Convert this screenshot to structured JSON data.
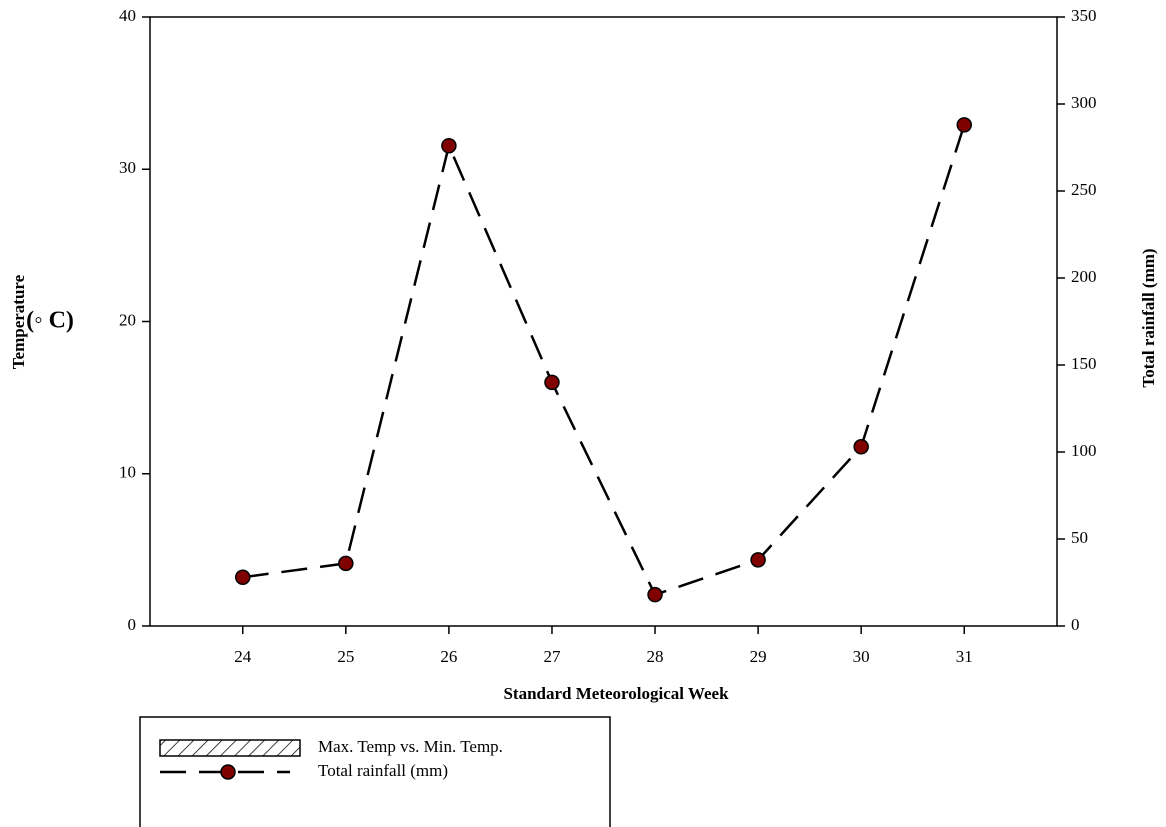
{
  "chart_data": {
    "type": "line",
    "xlabel": "Standard Meteorological Week",
    "ylabel": "Temperature",
    "ylabel_unit": "(◦ C)",
    "y2label": "Total rainfall (mm)",
    "x": [
      24,
      25,
      26,
      27,
      28,
      29,
      30,
      31
    ],
    "xlim": [
      23.1,
      31.9
    ],
    "xticks": [
      24,
      25,
      26,
      27,
      28,
      29,
      30,
      31
    ],
    "ylim": [
      0,
      40
    ],
    "yticks": [
      0,
      10,
      20,
      30,
      40
    ],
    "y2lim": [
      0,
      350
    ],
    "y2ticks": [
      0,
      50,
      100,
      150,
      200,
      250,
      300,
      350
    ],
    "grid": false,
    "legend": "bottom-left",
    "series": [
      {
        "name": "Max. Temp vs. Min. Temp.",
        "color": "#ffffff",
        "values": [
          null,
          null,
          null,
          null,
          null,
          null,
          null,
          null
        ]
      },
      {
        "name": "Total rainfall (mm)",
        "color": "#800000",
        "axis": "y2",
        "values": [
          28,
          36,
          276,
          140,
          18,
          38,
          103,
          288
        ]
      }
    ]
  }
}
